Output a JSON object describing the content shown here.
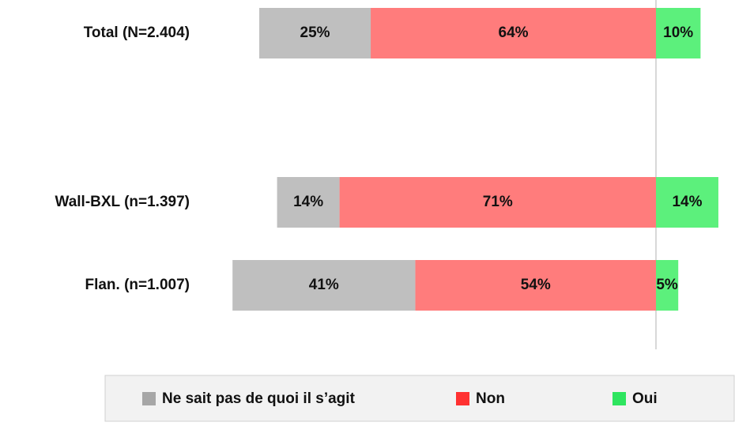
{
  "chart_data": {
    "type": "diverging-bar",
    "categories": [
      "Total (N=2.404)",
      "Wall-BXL (n=1.397)",
      "Flan. (n=1.007)"
    ],
    "series": [
      {
        "name": "Ne sait pas de quoi il s’agit",
        "color": "#bfbfbf",
        "legend_color": "#a6a6a6",
        "values": [
          25,
          14,
          41
        ],
        "value_labels": [
          "25%",
          "14%",
          "41%"
        ]
      },
      {
        "name": "Non",
        "color": "#ff7c7c",
        "legend_color": "#ff3131",
        "values": [
          64,
          71,
          54
        ],
        "value_labels": [
          "64%",
          "71%",
          "54%"
        ]
      },
      {
        "name": "Oui",
        "color": "#5cf07c",
        "legend_color": "#2ee55f",
        "values": [
          10,
          14,
          5
        ],
        "value_labels": [
          "10%",
          "14%",
          "5%"
        ]
      }
    ],
    "legend": "bottom"
  }
}
